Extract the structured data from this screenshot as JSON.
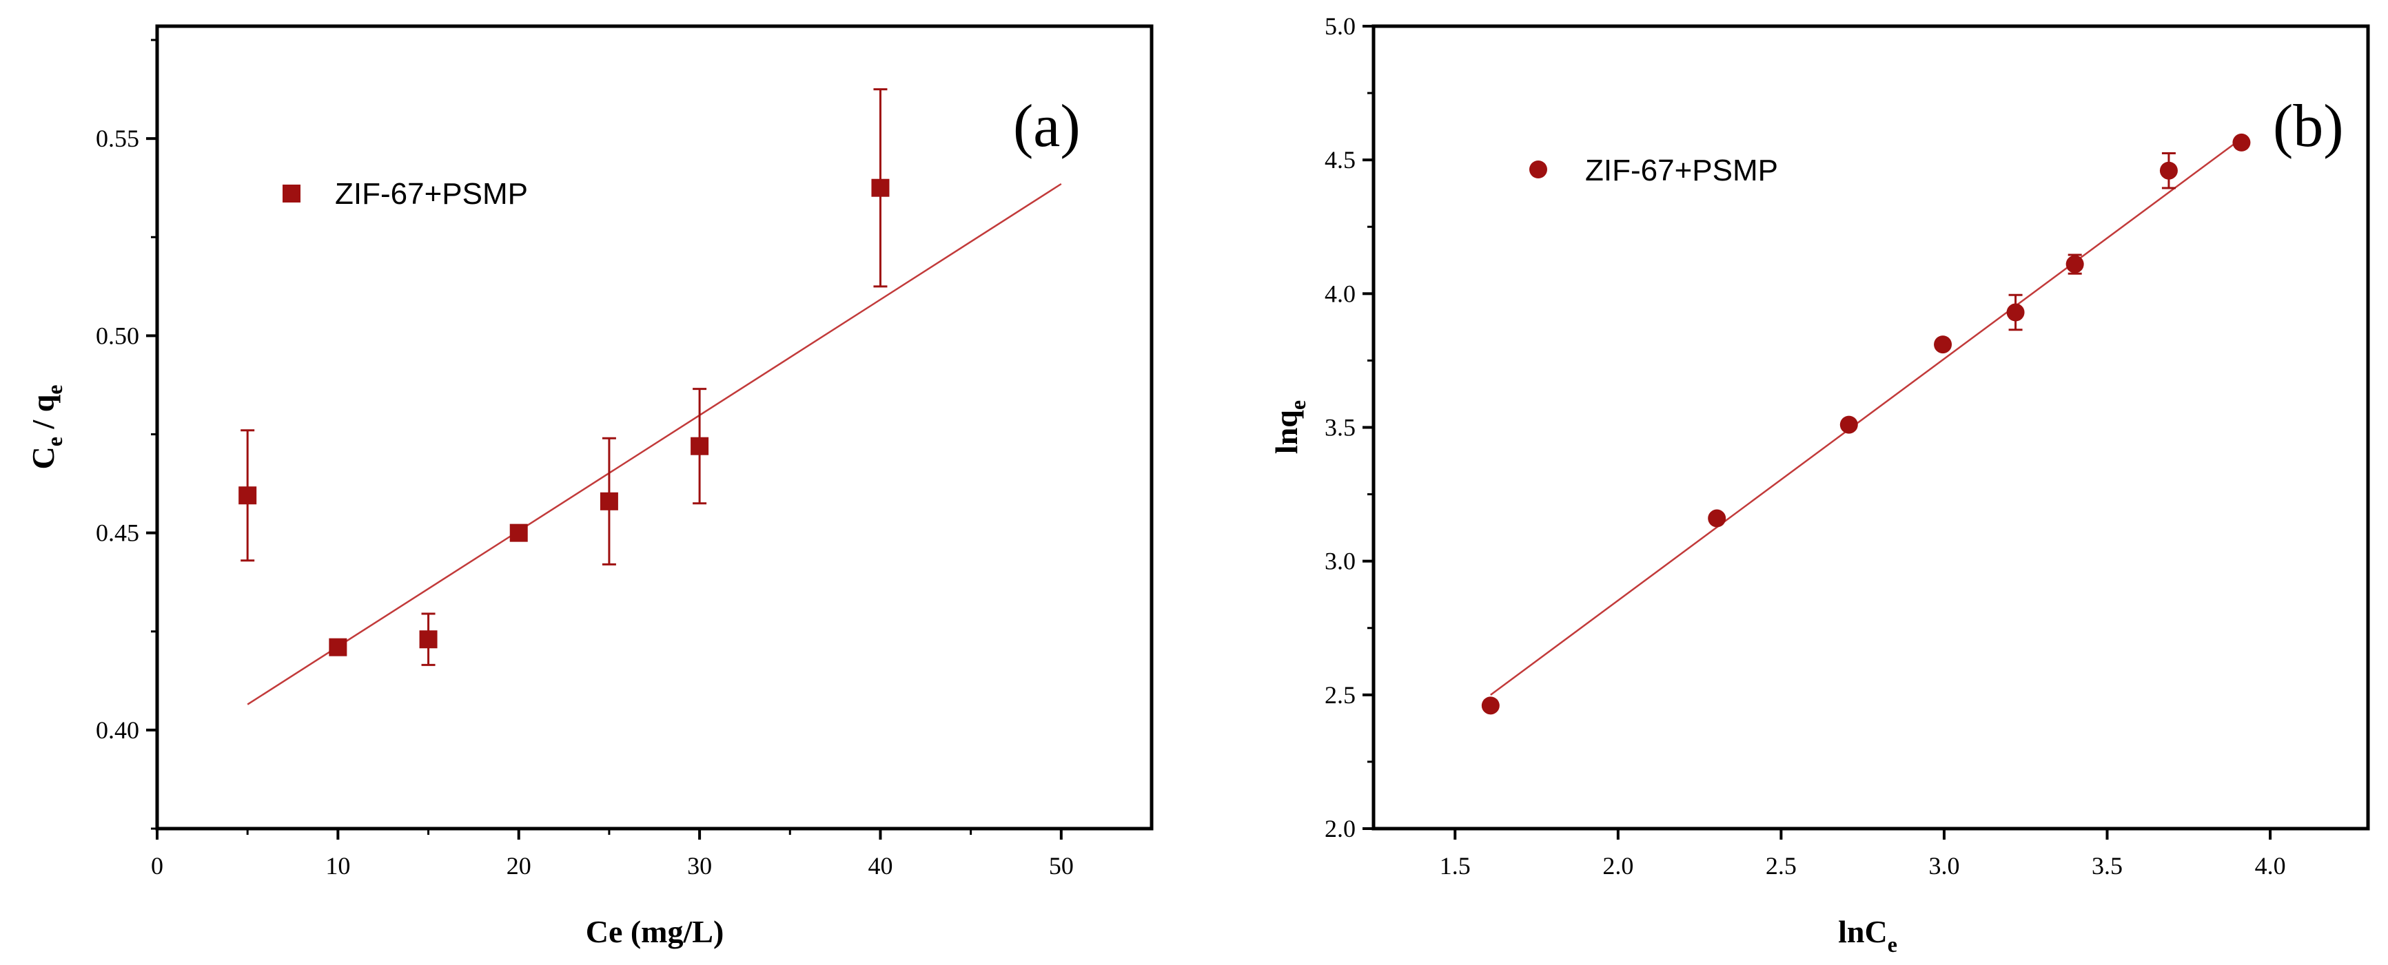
{
  "colors": {
    "series": "#9e1010",
    "fit_line": "#c23a3a",
    "axis": "#000000"
  },
  "chart_data": [
    {
      "type": "scatter",
      "panel_label": "(a)",
      "title": "",
      "xlabel": "Ce (mg/L)",
      "ylabel_main": "C",
      "ylabel_sub1": "e",
      "ylabel_mid": " / q",
      "ylabel_sub2": "e",
      "xlim": [
        0,
        55
      ],
      "ylim": [
        0.375,
        0.5785
      ],
      "xticks": [
        0,
        10,
        20,
        30,
        40,
        50
      ],
      "xtick_labels": [
        "0",
        "10",
        "20",
        "30",
        "40",
        "50"
      ],
      "yticks": [
        0.4,
        0.45,
        0.5,
        0.55
      ],
      "ytick_labels": [
        "0.40",
        "0.45",
        "0.50",
        "0.55"
      ],
      "marker": "square",
      "legend": {
        "label": "ZIF-67+PSMP",
        "position": "top-left"
      },
      "series": [
        {
          "name": "ZIF-67+PSMP",
          "x": [
            5,
            10,
            15,
            20,
            25,
            30,
            40
          ],
          "y": [
            0.4595,
            0.421,
            0.423,
            0.45,
            0.458,
            0.472,
            0.5375
          ],
          "error": [
            0.0165,
            0.0015,
            0.0065,
            0.001,
            0.016,
            0.0145,
            0.025
          ]
        }
      ],
      "fit_line": {
        "x": [
          5,
          50
        ],
        "y": [
          0.4065,
          0.5385
        ]
      }
    },
    {
      "type": "scatter",
      "panel_label": "(b)",
      "title": "",
      "xlabel_main": "lnC",
      "xlabel_sub": "e",
      "ylabel_main": "lnq",
      "ylabel_sub": "e",
      "xlim": [
        1.25,
        4.3
      ],
      "ylim": [
        2.0,
        5.0
      ],
      "xticks": [
        1.5,
        2.0,
        2.5,
        3.0,
        3.5,
        4.0
      ],
      "xtick_labels": [
        "1.5",
        "2.0",
        "2.5",
        "3.0",
        "3.5",
        "4.0"
      ],
      "yticks": [
        2.0,
        2.5,
        3.0,
        3.5,
        4.0,
        4.5,
        5.0
      ],
      "ytick_labels": [
        "2.0",
        "2.5",
        "3.0",
        "3.5",
        "4.0",
        "4.5",
        "5.0"
      ],
      "marker": "circle",
      "legend": {
        "label": "ZIF-67+PSMP",
        "position": "top-left"
      },
      "series": [
        {
          "name": "ZIF-67+PSMP",
          "x": [
            1.609,
            2.303,
            2.708,
            2.996,
            3.219,
            3.401,
            3.689,
            3.912
          ],
          "y": [
            2.46,
            3.16,
            3.51,
            3.81,
            3.93,
            4.11,
            4.46,
            4.565
          ],
          "error": [
            0.01,
            0.01,
            0.01,
            0.01,
            0.065,
            0.035,
            0.065,
            0.01
          ]
        }
      ],
      "fit_line": {
        "x": [
          1.609,
          3.912
        ],
        "y": [
          2.5,
          4.58
        ]
      }
    }
  ]
}
